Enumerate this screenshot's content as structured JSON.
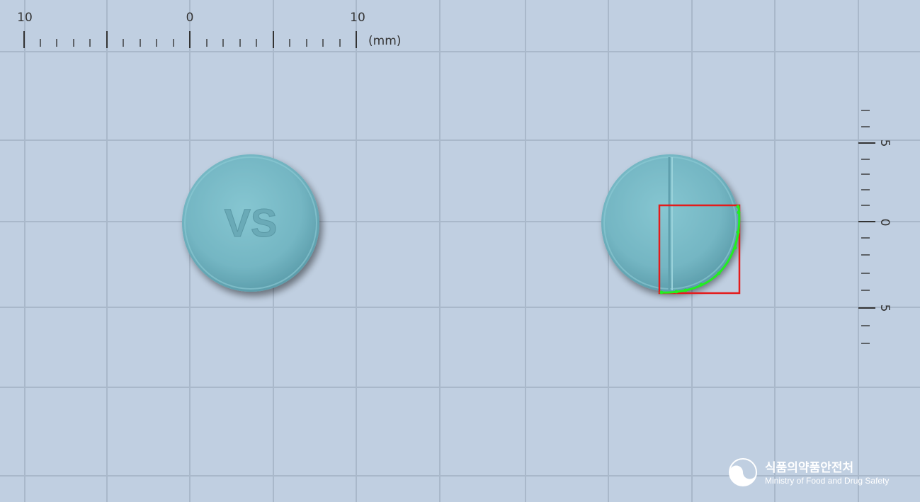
{
  "ruler_top": {
    "labels": [
      "10",
      "0",
      "10"
    ],
    "unit": "(mm)"
  },
  "ruler_right": {
    "labels": [
      "5",
      "0",
      "5"
    ]
  },
  "tablet_front": {
    "imprint": "VS",
    "color": "#7cbcc8"
  },
  "tablet_back": {
    "feature": "score-line",
    "color": "#7cbcc8"
  },
  "selection_box": {
    "color": "#e41b1b"
  },
  "edge_markers": {
    "color": "#22ee22"
  },
  "logo": {
    "korean": "식품의약품안전처",
    "english": "Ministry of Food and Drug Safety"
  }
}
